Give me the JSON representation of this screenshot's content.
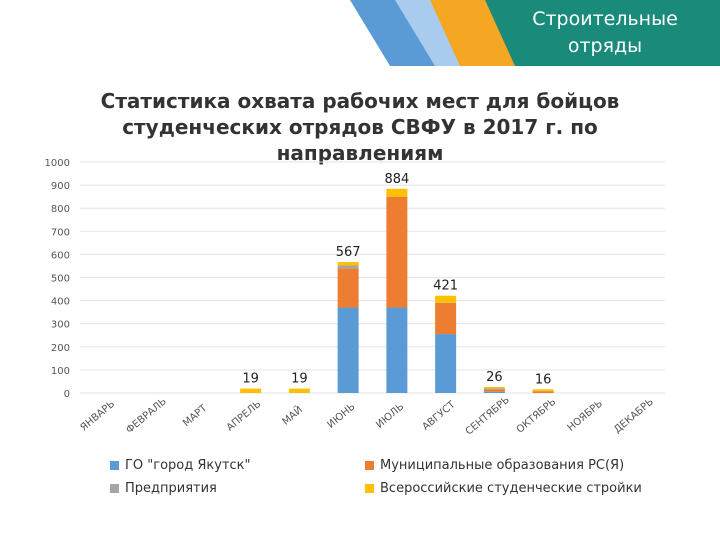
{
  "header": {
    "title": "Строительные отряды",
    "colors": {
      "teal": "#1a8a7a",
      "orange": "#f39c12",
      "blue": "#4a90d9",
      "grey": "#d9d9d9"
    }
  },
  "chart_data": {
    "type": "bar",
    "stacked": true,
    "title": "Статистика охвата рабочих мест для бойцов студенческих отрядов СВФУ в 2017 г. по направлениям",
    "categories": [
      "ЯНВАРЬ",
      "ФЕВРАЛЬ",
      "МАРТ",
      "АПРЕЛЬ",
      "МАЙ",
      "ИЮНЬ",
      "ИЮЛЬ",
      "АВГУСТ",
      "СЕНТЯБРЬ",
      "ОКТЯБРЬ",
      "НОЯБРЬ",
      "ДЕКАБРЬ"
    ],
    "ylim": [
      0,
      1000
    ],
    "yticks": [
      0,
      100,
      200,
      300,
      400,
      500,
      600,
      700,
      800,
      900,
      1000
    ],
    "grid": true,
    "series": [
      {
        "name": "ГО \"город Якутск\"",
        "color": "#5b9bd5",
        "values": [
          0,
          0,
          0,
          0,
          0,
          370,
          370,
          255,
          5,
          0,
          0,
          0
        ]
      },
      {
        "name": "Муниципальные образования РС(Я)",
        "color": "#ed7d31",
        "values": [
          0,
          0,
          0,
          0,
          0,
          170,
          480,
          135,
          10,
          8,
          0,
          0
        ]
      },
      {
        "name": "Предприятия",
        "color": "#a5a5a5",
        "values": [
          0,
          0,
          0,
          0,
          0,
          12,
          0,
          1,
          5,
          0,
          0,
          0
        ]
      },
      {
        "name": "Всероссийские студенческие стройки",
        "color": "#ffc000",
        "values": [
          0,
          0,
          0,
          19,
          19,
          15,
          34,
          30,
          6,
          8,
          0,
          0
        ]
      }
    ],
    "totals": [
      null,
      null,
      null,
      19,
      19,
      567,
      884,
      421,
      26,
      16,
      null,
      null
    ],
    "legend_position": "bottom"
  }
}
